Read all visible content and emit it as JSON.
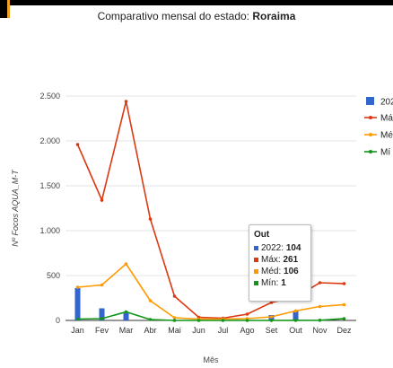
{
  "page": {
    "title_prefix": "Comparativo mensal do estado: ",
    "title_state": "Roraima"
  },
  "chart_data": {
    "type": "line",
    "title": "Comparativo mensal do estado: Roraima",
    "xlabel": "Mês",
    "ylabel": "Nº Focos AQUA_M-T",
    "ylim": [
      0,
      2500
    ],
    "yticks": [
      0,
      500,
      1000,
      1500,
      2000,
      2500
    ],
    "ytick_labels": [
      "0",
      "500",
      "1.000",
      "1.500",
      "2.000",
      "2.500"
    ],
    "categories": [
      "Jan",
      "Fev",
      "Mar",
      "Abr",
      "Mai",
      "Jun",
      "Jul",
      "Ago",
      "Set",
      "Out",
      "Nov",
      "Dez"
    ],
    "grid": true,
    "legend_position": "right",
    "series": [
      {
        "name": "2022",
        "kind": "bar",
        "color": "#3366cc",
        "values": [
          360,
          135,
          80,
          null,
          null,
          null,
          null,
          null,
          60,
          104,
          null,
          null
        ]
      },
      {
        "name": "Máx",
        "kind": "line",
        "color": "#dc3912",
        "values": [
          1960,
          1340,
          2440,
          1130,
          270,
          35,
          25,
          70,
          200,
          261,
          420,
          410
        ]
      },
      {
        "name": "Méd",
        "kind": "line",
        "color": "#ff9900",
        "values": [
          370,
          395,
          630,
          220,
          30,
          15,
          15,
          20,
          40,
          106,
          155,
          175
        ]
      },
      {
        "name": "Mín",
        "kind": "line",
        "color": "#109618",
        "values": [
          15,
          20,
          95,
          10,
          0,
          0,
          0,
          0,
          0,
          1,
          2,
          20
        ]
      }
    ],
    "legend_labels": [
      "202",
      "Má",
      "Mé",
      "Mí"
    ],
    "tooltip": {
      "title": "Out",
      "rows": [
        {
          "label": "2022: ",
          "value": "104",
          "color": "#3366cc"
        },
        {
          "label": "Máx: ",
          "value": "261",
          "color": "#dc3912"
        },
        {
          "label": "Méd: ",
          "value": "106",
          "color": "#ff9900"
        },
        {
          "label": "Mín: ",
          "value": "1",
          "color": "#109618"
        }
      ]
    }
  }
}
